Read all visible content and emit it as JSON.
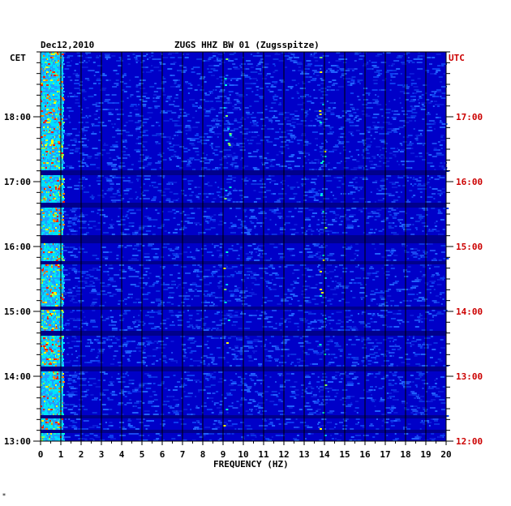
{
  "chart_data": {
    "type": "heatmap",
    "title_date": "Dec12,2010",
    "title_station": "ZUGS HHZ BW 01 (Zugsspitze)",
    "xlabel": "FREQUENCY (HZ)",
    "xlim": [
      0,
      20
    ],
    "x_ticks": [
      "0",
      "1",
      "2",
      "3",
      "4",
      "5",
      "6",
      "7",
      "8",
      "9",
      "10",
      "11",
      "12",
      "13",
      "14",
      "15",
      "16",
      "17",
      "18",
      "19",
      "20"
    ],
    "left_axis_label": "CET",
    "left_ticks": [
      "18:00",
      "17:00",
      "16:00",
      "15:00",
      "14:00",
      "13:00"
    ],
    "right_axis_label": "UTC",
    "right_ticks": [
      "17:00",
      "16:00",
      "15:00",
      "14:00",
      "13:00",
      "12:00"
    ],
    "time_range_cet": [
      "13:00",
      "18:50"
    ],
    "background_color": "#0000c8",
    "right_axis_color": "#cc0000",
    "features": [
      {
        "freq_hz": [
          0.1,
          1.0
        ],
        "description": "strong low-frequency energy"
      },
      {
        "freq_hz": [
          9.0,
          9.4
        ],
        "description": "intermittent band"
      },
      {
        "freq_hz": [
          13.7,
          14.1
        ],
        "description": "intermittent band"
      }
    ],
    "footer_mark": "*"
  }
}
